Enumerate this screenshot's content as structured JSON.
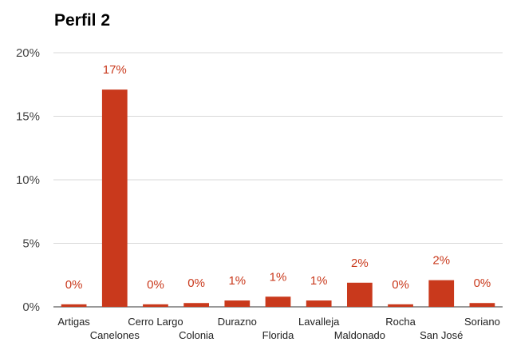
{
  "chart_data": {
    "type": "bar",
    "title": "Perfil 2",
    "xlabel": "",
    "ylabel": "",
    "ylim": [
      0,
      20
    ],
    "yticks": [
      "0%",
      "5%",
      "10%",
      "15%",
      "20%"
    ],
    "categories": [
      "Artigas",
      "Canelones",
      "Cerro Largo",
      "Colonia",
      "Durazno",
      "Florida",
      "Lavalleja",
      "Maldonado",
      "Rocha",
      "San José",
      "Soriano"
    ],
    "values": [
      0.2,
      17.1,
      0.2,
      0.3,
      0.5,
      0.8,
      0.5,
      1.9,
      0.2,
      2.1,
      0.3
    ],
    "data_labels": [
      "0%",
      "17%",
      "0%",
      "0%",
      "1%",
      "1%",
      "1%",
      "2%",
      "0%",
      "2%",
      "0%"
    ],
    "grid": true,
    "legend": "none",
    "colors": {
      "bar": "#c9391c",
      "label": "#c9391c",
      "grid": "#d9d9d9",
      "axis": "#333333"
    }
  }
}
